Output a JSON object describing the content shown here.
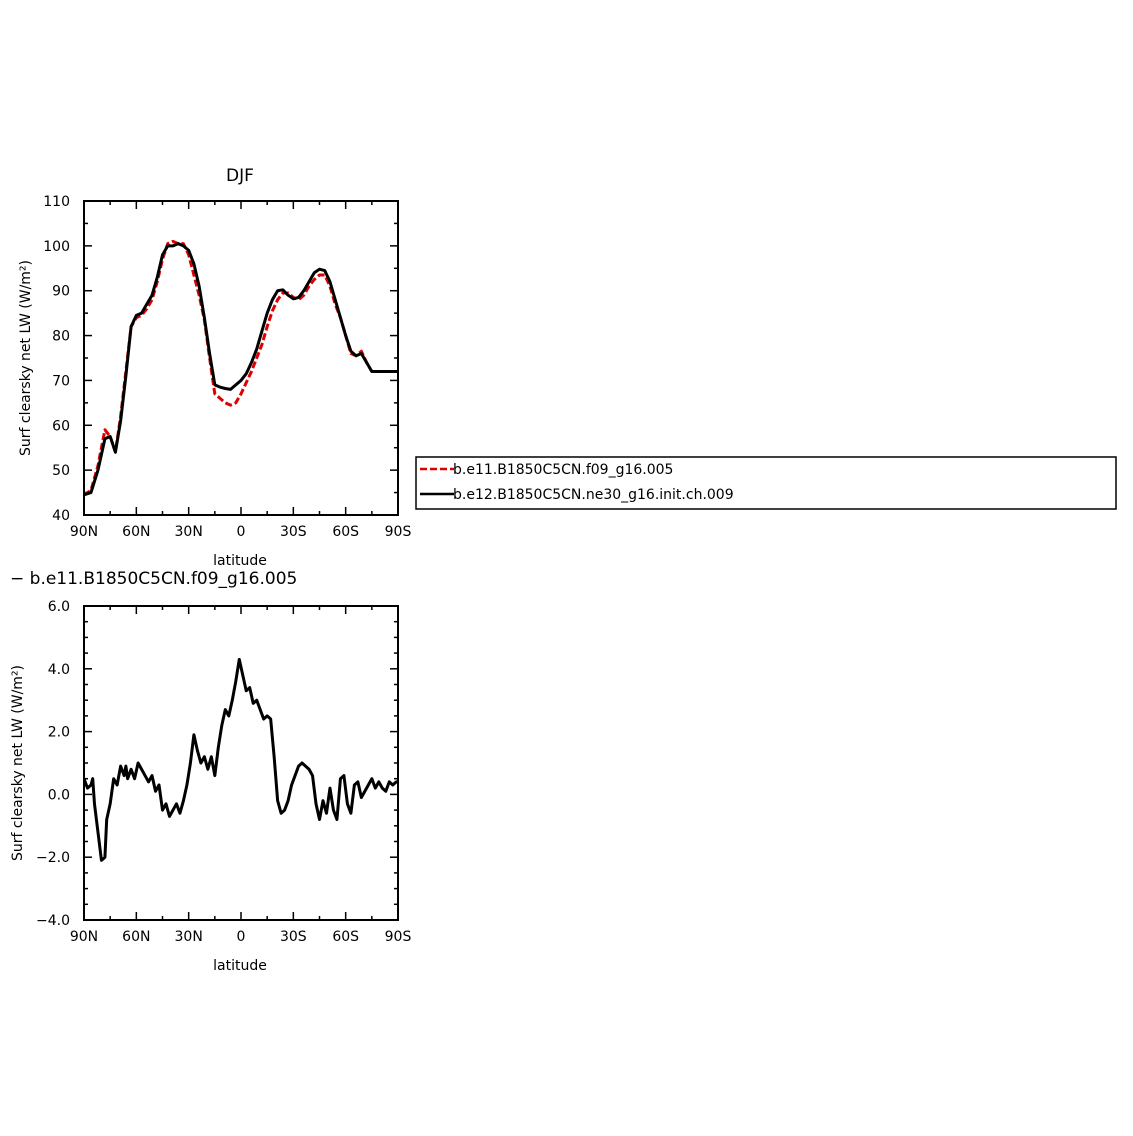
{
  "chart_data": [
    {
      "type": "line",
      "title": "DJF",
      "xlabel": "latitude",
      "ylabel": "Surf clearsky net LW (W/m²)",
      "xlim": [
        90,
        -90
      ],
      "ylim": [
        40,
        110
      ],
      "xtick_labels": [
        "90N",
        "60N",
        "30N",
        "0",
        "30S",
        "60S",
        "90S"
      ],
      "ytick_labels": [
        "110",
        "100",
        "90",
        "80",
        "70",
        "60",
        "50",
        "40"
      ],
      "legend_position": "right",
      "series": [
        {
          "name": "b.e11.B1850C5CN.f09_g16.005",
          "color": "#e00000",
          "dash": "dashed",
          "x": [
            90,
            86,
            82,
            78,
            75,
            72,
            69,
            66,
            63,
            60,
            57,
            54,
            51,
            48,
            45,
            42,
            39,
            36,
            33,
            30,
            27,
            24,
            21,
            18,
            15,
            12,
            9,
            6,
            3,
            0,
            -3,
            -6,
            -9,
            -12,
            -15,
            -18,
            -21,
            -24,
            -27,
            -30,
            -33,
            -36,
            -39,
            -42,
            -45,
            -48,
            -51,
            -54,
            -57,
            -60,
            -63,
            -66,
            -69,
            -72,
            -75,
            -78,
            -81,
            -84,
            -87,
            -90
          ],
          "y": [
            44.5,
            45.5,
            51,
            59,
            57.5,
            54,
            62,
            72,
            82,
            84,
            84.5,
            86,
            88,
            92,
            97,
            100.5,
            101,
            100.5,
            100.5,
            98,
            93.5,
            89,
            83.5,
            75,
            67,
            66,
            65,
            64.5,
            65,
            67,
            69.5,
            72,
            75,
            78,
            82,
            85.5,
            88,
            89.5,
            89.5,
            88.5,
            88,
            89,
            91,
            92.5,
            93.5,
            93.5,
            91,
            87,
            84,
            80,
            76,
            75.5,
            76.5,
            74,
            72,
            72,
            72,
            72,
            72,
            72
          ]
        },
        {
          "name": "b.e12.B1850C5CN.ne30_g16.init.ch.009",
          "color": "#000000",
          "dash": "solid",
          "x": [
            90,
            86,
            82,
            78,
            75,
            72,
            69,
            66,
            63,
            60,
            57,
            54,
            51,
            48,
            45,
            42,
            39,
            36,
            33,
            30,
            27,
            24,
            21,
            18,
            15,
            12,
            9,
            6,
            3,
            0,
            -3,
            -6,
            -9,
            -12,
            -15,
            -18,
            -21,
            -24,
            -27,
            -30,
            -33,
            -36,
            -39,
            -42,
            -45,
            -48,
            -51,
            -54,
            -57,
            -60,
            -63,
            -66,
            -69,
            -72,
            -75,
            -78,
            -81,
            -84,
            -87,
            -90
          ],
          "y": [
            44.5,
            45,
            50,
            57,
            57.5,
            54,
            61,
            71,
            82,
            84.5,
            85,
            87,
            89,
            93,
            98,
            100,
            100,
            100.5,
            100,
            99,
            96,
            91,
            84,
            76,
            69,
            68.5,
            68.2,
            68,
            69,
            70,
            71.5,
            74,
            77,
            81,
            85,
            88,
            90,
            90.2,
            89,
            88.2,
            88.5,
            90,
            92,
            94,
            94.8,
            94.5,
            92,
            88,
            84,
            80,
            76.5,
            75.5,
            76,
            74,
            72,
            72,
            72,
            72,
            72,
            72
          ]
        }
      ]
    },
    {
      "type": "line",
      "title": "− b.e11.B1850C5CN.f09_g16.005",
      "xlabel": "latitude",
      "ylabel": "Surf clearsky net LW (W/m²)",
      "xlim": [
        90,
        -90
      ],
      "ylim": [
        -4.0,
        6.0
      ],
      "xtick_labels": [
        "90N",
        "60N",
        "30N",
        "0",
        "30S",
        "60S",
        "90S"
      ],
      "ytick_labels": [
        "6.0",
        "4.0",
        "2.0",
        "0.0",
        "−2.0",
        "−4.0"
      ],
      "series": [
        {
          "color": "#000000",
          "dash": "solid",
          "x": [
            90,
            88,
            86,
            85,
            84,
            82,
            80,
            78,
            77,
            75,
            73,
            71,
            69,
            67,
            66,
            65,
            63,
            61,
            59,
            57,
            55,
            53,
            51,
            49,
            47,
            45,
            43,
            41,
            39,
            37,
            35,
            33,
            31,
            29,
            27,
            25,
            23,
            21,
            19,
            17,
            15,
            13,
            11,
            9,
            7,
            5,
            3,
            1,
            -1,
            -3,
            -5,
            -7,
            -9,
            -11,
            -13,
            -15,
            -17,
            -19,
            -21,
            -23,
            -25,
            -27,
            -29,
            -31,
            -33,
            -35,
            -37,
            -39,
            -41,
            -43,
            -45,
            -47,
            -49,
            -51,
            -53,
            -55,
            -57,
            -59,
            -61,
            -63,
            -65,
            -67,
            -69,
            -71,
            -73,
            -75,
            -77,
            -79,
            -81,
            -83,
            -85,
            -87,
            -89,
            -90
          ],
          "y": [
            0.5,
            0.2,
            0.3,
            0.5,
            -0.3,
            -1.2,
            -2.1,
            -2.0,
            -0.8,
            -0.3,
            0.5,
            0.3,
            0.9,
            0.6,
            0.9,
            0.5,
            0.8,
            0.5,
            1.0,
            0.8,
            0.6,
            0.4,
            0.6,
            0.1,
            0.3,
            -0.5,
            -0.3,
            -0.7,
            -0.5,
            -0.3,
            -0.6,
            -0.2,
            0.3,
            1.0,
            1.9,
            1.4,
            1.0,
            1.2,
            0.8,
            1.2,
            0.6,
            1.5,
            2.2,
            2.7,
            2.5,
            3.0,
            3.6,
            4.3,
            3.8,
            3.3,
            3.4,
            2.9,
            3.0,
            2.7,
            2.4,
            2.5,
            2.4,
            1.2,
            -0.2,
            -0.6,
            -0.5,
            -0.2,
            0.3,
            0.6,
            0.9,
            1.0,
            0.9,
            0.8,
            0.6,
            -0.3,
            -0.8,
            -0.2,
            -0.6,
            0.2,
            -0.5,
            -0.8,
            0.5,
            0.6,
            -0.3,
            -0.6,
            0.3,
            0.4,
            -0.1,
            0.1,
            0.3,
            0.5,
            0.2,
            0.4,
            0.2,
            0.1,
            0.4,
            0.3,
            0.4,
            0.4
          ]
        }
      ]
    }
  ]
}
